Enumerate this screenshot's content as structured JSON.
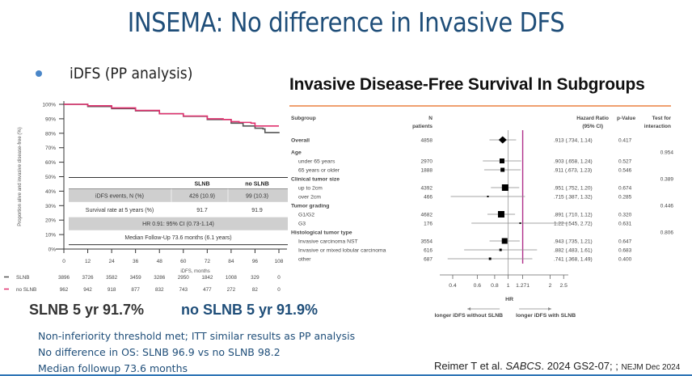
{
  "slide": {
    "title": "INSEMA: No difference in Invasive DFS",
    "bullet": "iDFS (PP analysis)",
    "summary_slnb": "SLNB 5 yr 91.7%",
    "summary_no_slnb": "no SLNB 5 yr 91.9%",
    "notes": [
      "Non-inferiority threshold met; ITT similar results as PP analysis",
      "No difference in OS: SLNB 96.9 vs no SLNB 98.2",
      "Median followup 73.6 months"
    ],
    "citation": {
      "author": "Reimer T et al. ",
      "journal": "SABCS",
      "rest": ". 2024 GS2-07; ; ",
      "small": "NEJM Dec 2024"
    },
    "colors": {
      "title": "#1f4e79",
      "slnb": "#555555",
      "no_slnb": "#e0306e",
      "forest_ref": "#b0308a",
      "rule": "#f0a070"
    }
  },
  "chart_data": [
    {
      "type": "line",
      "title": "iDFS (PP analysis)",
      "xlabel": "iDFS, months",
      "ylabel": "Proportion alive and invasive disease-free (%)",
      "xlim": [
        0,
        108
      ],
      "ylim": [
        0,
        100
      ],
      "xticks": [
        0,
        12,
        24,
        36,
        48,
        60,
        72,
        84,
        96,
        108
      ],
      "yticks": [
        "0%",
        "10%",
        "20%",
        "30%",
        "40%",
        "50%",
        "60%",
        "70%",
        "80%",
        "90%",
        "100%"
      ],
      "series": [
        {
          "name": "SLNB",
          "color": "#555555",
          "x": [
            0,
            12,
            24,
            36,
            48,
            60,
            72,
            84,
            90,
            96,
            100,
            101,
            108
          ],
          "y": [
            100,
            98.5,
            97,
            95.5,
            93.5,
            91.7,
            89.5,
            87,
            85,
            83.5,
            83,
            80.5,
            80
          ]
        },
        {
          "name": "no SLNB",
          "color": "#e0306e",
          "x": [
            0,
            12,
            24,
            36,
            48,
            60,
            72,
            80,
            84,
            88,
            94,
            96,
            108
          ],
          "y": [
            100,
            99,
            97.5,
            95.8,
            93.5,
            91.9,
            90,
            89.5,
            88,
            87.5,
            87,
            85,
            85
          ]
        }
      ],
      "table": {
        "headers": [
          "",
          "SLNB",
          "no SLNB"
        ],
        "rows": [
          [
            "iDFS events, N (%)",
            "426 (10.9)",
            "99 (10.3)"
          ],
          [
            "Survival rate at 5 years (%)",
            "91.7",
            "91.9"
          ]
        ],
        "hr": "HR 0.91: 95% CI (0.73-1.14)",
        "followup": "Median Follow-Up 73.6 months (6.1 years)"
      },
      "at_risk": [
        {
          "name": "SLNB",
          "values": [
            3896,
            3726,
            3582,
            3459,
            3286,
            2950,
            1842,
            1008,
            329,
            0
          ]
        },
        {
          "name": "no SLNB",
          "values": [
            962,
            942,
            918,
            877,
            832,
            743,
            477,
            272,
            82,
            0
          ]
        }
      ]
    },
    {
      "type": "scatter",
      "subtype": "forest",
      "title": "Invasive Disease-Free Survival In Subgroups",
      "headers": {
        "subgroup": "Subgroup",
        "n": [
          "N",
          "patients"
        ],
        "hr": [
          "Hazard Ratio",
          "(95% CI)"
        ],
        "p": "p-Value",
        "inter": [
          "Test for",
          "interaction"
        ]
      },
      "xlabel": "HR",
      "xscale": "log",
      "xlim": [
        0.35,
        2.7
      ],
      "xticks": [
        0.4,
        0.6,
        0.8,
        1,
        1.271,
        2,
        2.5
      ],
      "xtick_labels": [
        "0.4",
        "0.6",
        "0.8",
        "1",
        "1.271",
        "2",
        "2.5"
      ],
      "reference_line": 1,
      "margin_line": 1.271,
      "arrow_left": "longer iDFS without SLNB",
      "arrow_right": "longer iDFS with SLNB",
      "rows": [
        {
          "label": "Overall",
          "bold": true,
          "n": "4858",
          "hr": 0.913,
          "lo": 0.734,
          "hi": 1.14,
          "text": ".913 (.734, 1.14)",
          "p": "0.417",
          "inter": "",
          "diamond": true
        },
        {
          "label": "Age",
          "bold": true,
          "header": true,
          "inter": "0.954"
        },
        {
          "label": "under 65 years",
          "n": "2970",
          "hr": 0.903,
          "lo": 0.658,
          "hi": 1.24,
          "text": ".903 (.658, 1.24)",
          "p": "0.527",
          "inter": "",
          "size": 6
        },
        {
          "label": "65 years or older",
          "n": "1888",
          "hr": 0.911,
          "lo": 0.673,
          "hi": 1.23,
          "text": ".911 (.673, 1.23)",
          "p": "0.546",
          "inter": "",
          "size": 5
        },
        {
          "label": "Clinical tumor size",
          "bold": true,
          "header": true,
          "inter": "0.389"
        },
        {
          "label": "up to 2cm",
          "n": "4392",
          "hr": 0.951,
          "lo": 0.752,
          "hi": 1.2,
          "text": ".951 (.752, 1.20)",
          "p": "0.674",
          "inter": "",
          "size": 8
        },
        {
          "label": "over 2cm",
          "n": "466",
          "hr": 0.715,
          "lo": 0.387,
          "hi": 1.32,
          "text": ".715 (.387, 1.32)",
          "p": "0.285",
          "inter": "",
          "size": 2
        },
        {
          "label": "Tumor grading",
          "bold": true,
          "header": true,
          "inter": "0.446"
        },
        {
          "label": "G1/G2",
          "n": "4682",
          "hr": 0.891,
          "lo": 0.71,
          "hi": 1.12,
          "text": ".891 (.710, 1.12)",
          "p": "0.320",
          "inter": "",
          "size": 8
        },
        {
          "label": "G3",
          "n": "176",
          "hr": 1.22,
          "lo": 0.545,
          "hi": 2.72,
          "text": "1.22 (.545, 2.72)",
          "p": "0.631",
          "inter": "",
          "size": 2
        },
        {
          "label": "Histological tumor type",
          "bold": true,
          "header": true,
          "inter": "0.806"
        },
        {
          "label": "Invasive carcinoma NST",
          "n": "3554",
          "hr": 0.943,
          "lo": 0.735,
          "hi": 1.21,
          "text": ".943 (.735, 1.21)",
          "p": "0.647",
          "inter": "",
          "size": 7
        },
        {
          "label": "Invasive or mixed lobular carcinoma",
          "n": "616",
          "hr": 0.882,
          "lo": 0.483,
          "hi": 1.61,
          "text": ".882 (.483, 1.61)",
          "p": "0.683",
          "inter": "",
          "size": 3
        },
        {
          "label": "other",
          "n": "687",
          "hr": 0.741,
          "lo": 0.368,
          "hi": 1.49,
          "text": ".741 (.368, 1.49)",
          "p": "0.400",
          "inter": "",
          "size": 3
        }
      ]
    }
  ]
}
